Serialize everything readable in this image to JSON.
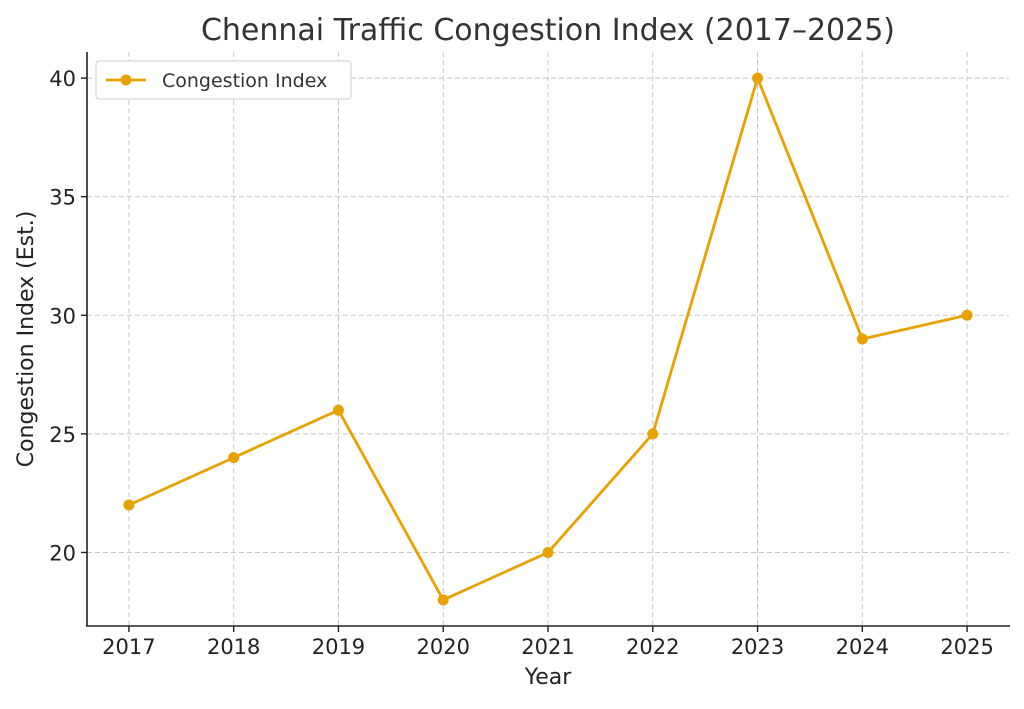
{
  "chart_data": {
    "type": "line",
    "title": "Chennai Traffic Congestion Index (2017–2025)",
    "xlabel": "Year",
    "ylabel": "Congestion Index (Est.)",
    "x": [
      2017,
      2018,
      2019,
      2020,
      2021,
      2022,
      2023,
      2024,
      2025
    ],
    "x_tick_labels": [
      "2017",
      "2018",
      "2019",
      "2020",
      "2021",
      "2022",
      "2023",
      "2024",
      "2025"
    ],
    "y_ticks": [
      20,
      25,
      30,
      35,
      40
    ],
    "y_tick_labels": [
      "20",
      "25",
      "30",
      "35",
      "40"
    ],
    "xlim": [
      2016.6,
      2025.4
    ],
    "ylim": [
      16.9,
      41.1
    ],
    "grid": true,
    "legend_placement": "top-left",
    "series": [
      {
        "name": "Congestion Index",
        "values": [
          22,
          24,
          26,
          18,
          20,
          25,
          40,
          29,
          30
        ],
        "color": "#E8A200",
        "marker": "circle"
      }
    ]
  }
}
